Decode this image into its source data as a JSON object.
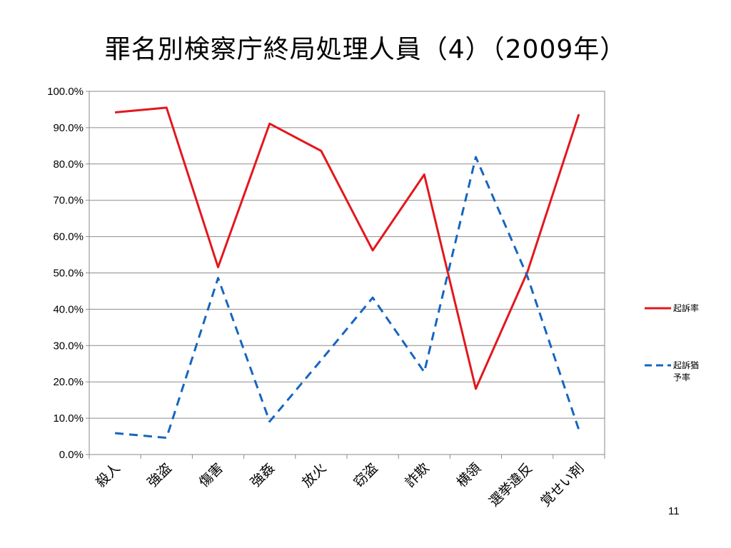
{
  "slide": {
    "title": "罪名別検察庁終局処理人員（4）（2009年）",
    "page_number": "11"
  },
  "chart_data": {
    "type": "line",
    "title": "",
    "xlabel": "",
    "ylabel": "",
    "categories": [
      "殺人",
      "強盗",
      "傷害",
      "強姦",
      "放火",
      "窃盗",
      "詐欺",
      "横領",
      "選挙違反",
      "覚せい剤"
    ],
    "ylim": [
      0,
      100
    ],
    "y_ticks": [
      "0.0%",
      "10.0%",
      "20.0%",
      "30.0%",
      "40.0%",
      "50.0%",
      "60.0%",
      "70.0%",
      "80.0%",
      "90.0%",
      "100.0%"
    ],
    "grid": true,
    "legend_position": "right",
    "series": [
      {
        "name": "起訴率",
        "name_lines": [
          "起訴率"
        ],
        "color": "#e3171d",
        "dash": "solid",
        "values": [
          94.2,
          95.5,
          51.6,
          91.1,
          83.6,
          56.2,
          77.1,
          18.1,
          50.2,
          93.7
        ]
      },
      {
        "name": "起訴猶予率",
        "name_lines": [
          "起訴猶",
          "予率"
        ],
        "color": "#1565c0",
        "dash": "dashed",
        "values": [
          5.9,
          4.6,
          48.6,
          9.1,
          26.0,
          43.2,
          22.7,
          81.9,
          49.1,
          6.8
        ]
      }
    ]
  }
}
